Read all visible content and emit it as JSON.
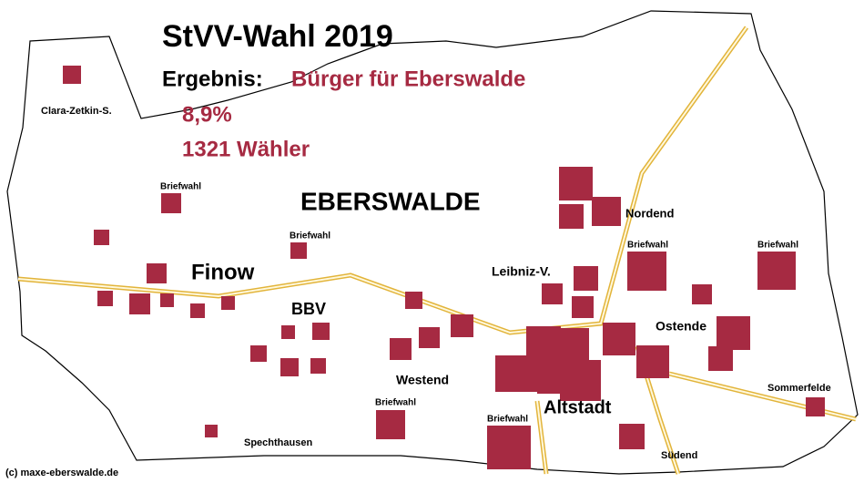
{
  "header": {
    "title": "StVV-Wahl 2019",
    "result_label": "Ergebnis:",
    "party": "Bürger für Eberswalde",
    "percent": "8,9%",
    "voters": "1321 Wähler"
  },
  "city": "EBERSWALDE",
  "districts": [
    "Finow",
    "BBV",
    "Westend",
    "Altstadt",
    "Nordend",
    "Leibniz-V.",
    "Ostende",
    "Südend",
    "Spechthausen",
    "Sommerfelde",
    "Clara-Zetkin-S."
  ],
  "postal_votes": [
    "Briefwahl",
    "Briefwahl",
    "Briefwahl",
    "Briefwahl",
    "Briefwahl",
    "Briefwahl"
  ],
  "credit": "(c) maxe-eberswalde.de"
}
